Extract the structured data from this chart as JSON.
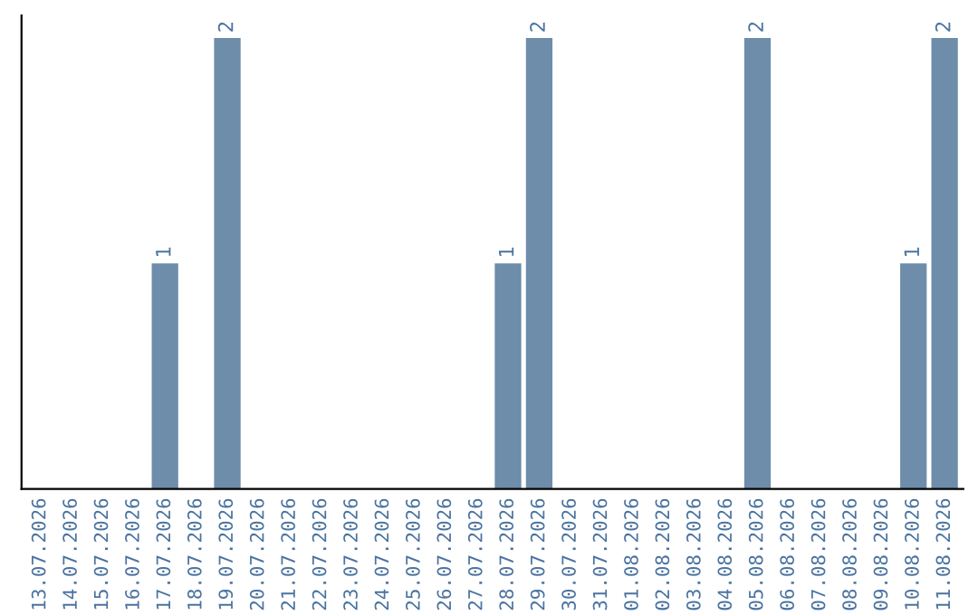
{
  "chart_data": {
    "type": "bar",
    "categories": [
      "13.07.2026",
      "14.07.2026",
      "15.07.2026",
      "16.07.2026",
      "17.07.2026",
      "18.07.2026",
      "19.07.2026",
      "20.07.2026",
      "21.07.2026",
      "22.07.2026",
      "23.07.2026",
      "24.07.2026",
      "25.07.2026",
      "26.07.2026",
      "27.07.2026",
      "28.07.2026",
      "29.07.2026",
      "30.07.2026",
      "31.07.2026",
      "01.08.2026",
      "02.08.2026",
      "03.08.2026",
      "04.08.2026",
      "05.08.2026",
      "06.08.2026",
      "07.08.2026",
      "08.08.2026",
      "09.08.2026",
      "10.08.2026",
      "11.08.2026"
    ],
    "values": [
      0,
      0,
      0,
      0,
      1,
      0,
      2,
      0,
      0,
      0,
      0,
      0,
      0,
      0,
      0,
      1,
      2,
      0,
      0,
      0,
      0,
      0,
      0,
      2,
      0,
      0,
      0,
      0,
      1,
      2
    ],
    "color": "#6d8dab",
    "value_labels": [
      null,
      null,
      null,
      null,
      "1",
      null,
      "2",
      null,
      null,
      null,
      null,
      null,
      null,
      null,
      null,
      "1",
      "2",
      null,
      null,
      null,
      null,
      null,
      null,
      "2",
      null,
      null,
      null,
      null,
      "1",
      "2"
    ],
    "tick_labels": "x",
    "grid": false,
    "legend": false
  }
}
